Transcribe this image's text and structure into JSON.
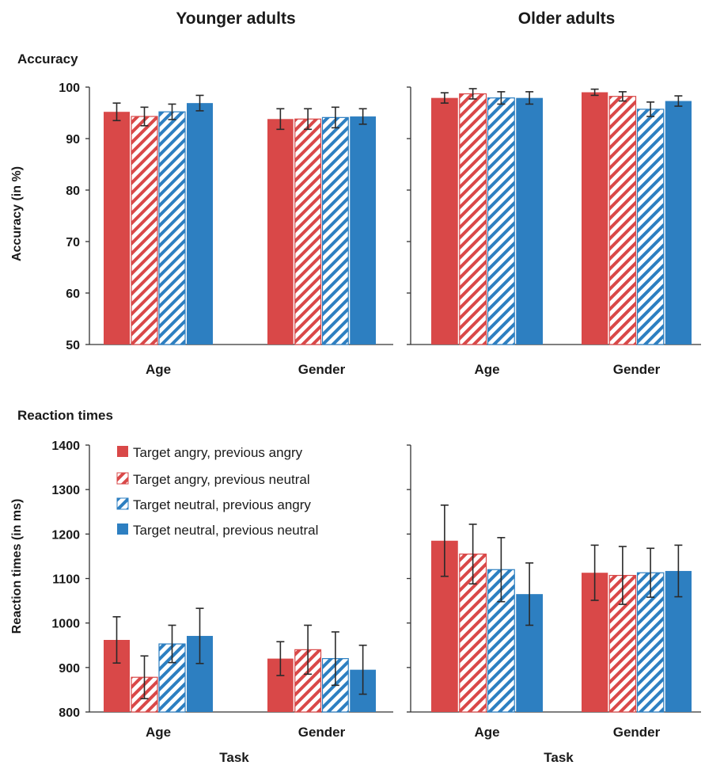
{
  "colors": {
    "angry": "#d94848",
    "neutral": "#2d7fc1",
    "background": "#ffffff"
  },
  "columns": [
    "Younger adults",
    "Older adults"
  ],
  "sections": [
    "Accuracy",
    "Reaction times"
  ],
  "task_label": "Task",
  "legend": [
    {
      "label": "Target angry, previous angry",
      "color": "angry",
      "pattern": "solid"
    },
    {
      "label": "Target angry, previous neutral",
      "color": "angry",
      "pattern": "hatched"
    },
    {
      "label": "Target neutral, previous angry",
      "color": "neutral",
      "pattern": "hatched"
    },
    {
      "label": "Target neutral, previous neutral",
      "color": "neutral",
      "pattern": "solid"
    }
  ],
  "chart_data": [
    {
      "type": "bar",
      "panel": "Younger adults - Accuracy",
      "ylabel": "Accuracy (in %)",
      "ylim": [
        50,
        100
      ],
      "yticks": [
        50,
        60,
        70,
        80,
        90,
        100
      ],
      "categories": [
        "Age",
        "Gender"
      ],
      "series": [
        {
          "name": "Target angry, previous angry",
          "values": [
            95.2,
            93.8
          ],
          "err": [
            1.7,
            2.0
          ]
        },
        {
          "name": "Target angry, previous neutral",
          "values": [
            94.3,
            93.8
          ],
          "err": [
            1.8,
            2.0
          ]
        },
        {
          "name": "Target neutral, previous angry",
          "values": [
            95.2,
            94.1
          ],
          "err": [
            1.5,
            2.0
          ]
        },
        {
          "name": "Target neutral, previous neutral",
          "values": [
            96.9,
            94.3
          ],
          "err": [
            1.5,
            1.5
          ]
        }
      ]
    },
    {
      "type": "bar",
      "panel": "Older adults - Accuracy",
      "ylim": [
        50,
        100
      ],
      "categories": [
        "Age",
        "Gender"
      ],
      "series": [
        {
          "name": "Target angry, previous angry",
          "values": [
            97.9,
            99.0
          ],
          "err": [
            1.0,
            0.6
          ]
        },
        {
          "name": "Target angry, previous neutral",
          "values": [
            98.7,
            98.2
          ],
          "err": [
            1.0,
            0.9
          ]
        },
        {
          "name": "Target neutral, previous angry",
          "values": [
            97.9,
            95.7
          ],
          "err": [
            1.2,
            1.4
          ]
        },
        {
          "name": "Target neutral, previous neutral",
          "values": [
            97.9,
            97.3
          ],
          "err": [
            1.2,
            1.0
          ]
        }
      ]
    },
    {
      "type": "bar",
      "panel": "Younger adults - Reaction times",
      "ylabel": "Reaction times  (in ms)",
      "ylim": [
        800,
        1400
      ],
      "yticks": [
        800,
        900,
        1000,
        1100,
        1200,
        1300,
        1400
      ],
      "categories": [
        "Age",
        "Gender"
      ],
      "series": [
        {
          "name": "Target angry, previous angry",
          "values": [
            962,
            920
          ],
          "err": [
            52,
            38
          ]
        },
        {
          "name": "Target angry, previous neutral",
          "values": [
            878,
            940
          ],
          "err": [
            48,
            55
          ]
        },
        {
          "name": "Target neutral, previous angry",
          "values": [
            953,
            920
          ],
          "err": [
            42,
            60
          ]
        },
        {
          "name": "Target neutral, previous neutral",
          "values": [
            971,
            895
          ],
          "err": [
            62,
            55
          ]
        }
      ]
    },
    {
      "type": "bar",
      "panel": "Older adults - Reaction times",
      "ylim": [
        800,
        1400
      ],
      "categories": [
        "Age",
        "Gender"
      ],
      "series": [
        {
          "name": "Target angry, previous angry",
          "values": [
            1185,
            1113
          ],
          "err": [
            80,
            62
          ]
        },
        {
          "name": "Target angry, previous neutral",
          "values": [
            1155,
            1107
          ],
          "err": [
            67,
            65
          ]
        },
        {
          "name": "Target neutral, previous angry",
          "values": [
            1120,
            1113
          ],
          "err": [
            72,
            55
          ]
        },
        {
          "name": "Target neutral, previous neutral",
          "values": [
            1065,
            1117
          ],
          "err": [
            70,
            58
          ]
        }
      ]
    }
  ]
}
